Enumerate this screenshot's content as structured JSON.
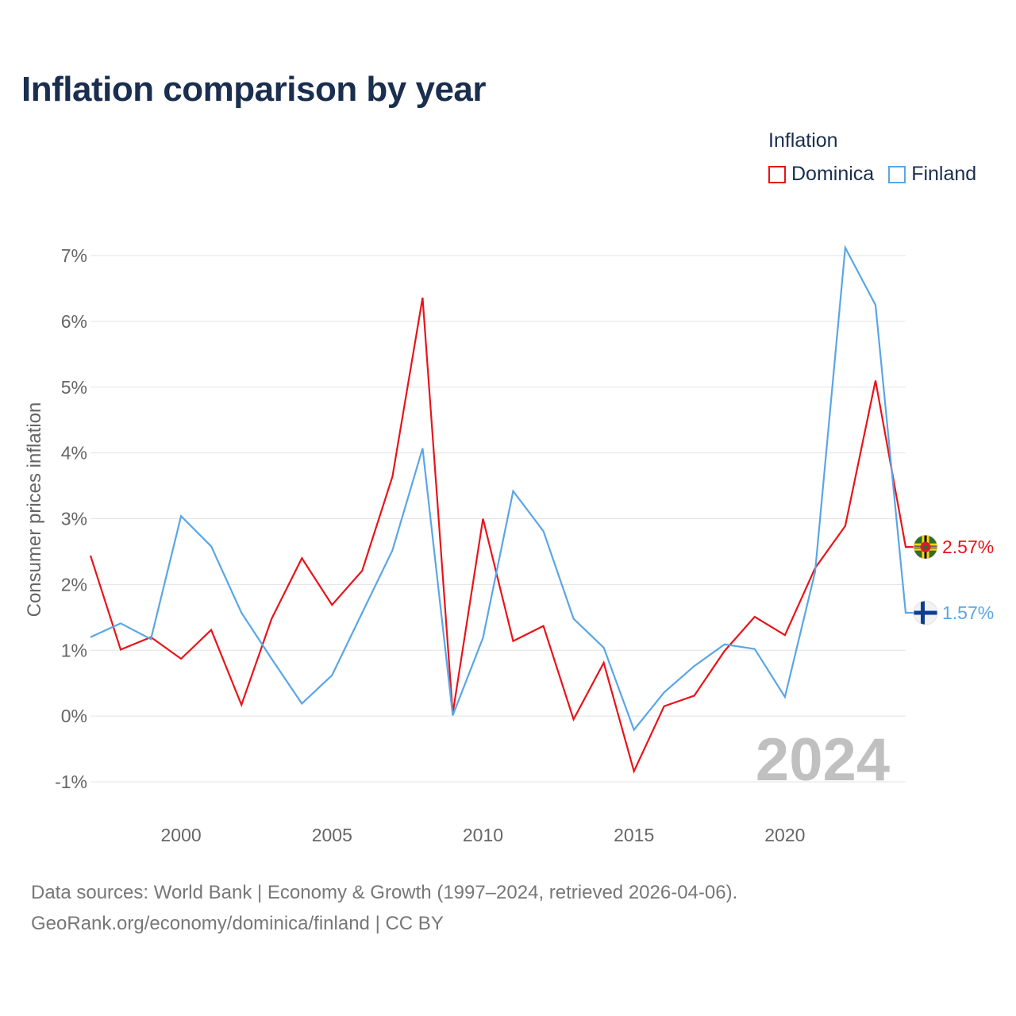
{
  "title": "Inflation comparison by year",
  "legend": {
    "title": "Inflation",
    "items": [
      {
        "name": "Dominica",
        "color": "#e8141a"
      },
      {
        "name": "Finland",
        "color": "#5aa6e6"
      }
    ]
  },
  "footer": {
    "line1": "Data sources: World Bank | Economy & Growth (1997–2024, retrieved 2026-04-06).",
    "line2": "GeoRank.org/economy/dominica/finland | CC BY"
  },
  "chart_data": {
    "type": "line",
    "title": "Inflation comparison by year",
    "xlabel": "",
    "ylabel": "Consumer prices inflation",
    "x": [
      1997,
      1998,
      1999,
      2000,
      2001,
      2002,
      2003,
      2004,
      2005,
      2006,
      2007,
      2008,
      2009,
      2010,
      2011,
      2012,
      2013,
      2014,
      2015,
      2016,
      2017,
      2018,
      2019,
      2020,
      2021,
      2022,
      2023,
      2024
    ],
    "xlim": [
      1997,
      2024
    ],
    "ylim": [
      -1,
      7
    ],
    "xticks": [
      2000,
      2005,
      2010,
      2015,
      2020
    ],
    "yticks": [
      -1,
      0,
      1,
      2,
      3,
      4,
      5,
      6,
      7
    ],
    "ytick_labels": [
      "-1%",
      "0%",
      "1%",
      "2%",
      "3%",
      "4%",
      "5%",
      "6%",
      "7%"
    ],
    "grid": true,
    "legend_position": "top-right",
    "watermark": "2024",
    "series": [
      {
        "name": "Dominica",
        "color": "#e8141a",
        "end_label": "2.57%",
        "flag": "dominica-flag-icon",
        "values": [
          2.44,
          1.01,
          1.2,
          0.87,
          1.31,
          0.17,
          1.48,
          2.4,
          1.69,
          2.21,
          3.64,
          6.36,
          0.04,
          3.0,
          1.14,
          1.37,
          -0.05,
          0.81,
          -0.84,
          0.15,
          0.31,
          0.99,
          1.51,
          1.23,
          2.25,
          2.89,
          5.1,
          2.57
        ]
      },
      {
        "name": "Finland",
        "color": "#5aa6e6",
        "end_label": "1.57%",
        "flag": "finland-flag-icon",
        "values": [
          1.2,
          1.41,
          1.17,
          3.04,
          2.58,
          1.57,
          0.87,
          0.19,
          0.62,
          1.57,
          2.52,
          4.07,
          0.01,
          1.19,
          3.42,
          2.81,
          1.48,
          1.04,
          -0.21,
          0.36,
          0.76,
          1.09,
          1.02,
          0.29,
          2.19,
          7.12,
          6.25,
          1.57
        ]
      }
    ]
  }
}
